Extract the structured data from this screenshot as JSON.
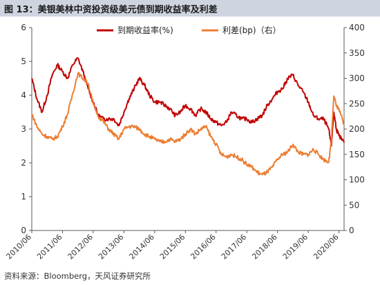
{
  "header": {
    "title": "图 13：美银美林中资投资级美元债到期收益率及利差"
  },
  "footer": {
    "source": "资料来源：Bloomberg，天风证券研究所"
  },
  "chart_data": {
    "type": "line",
    "legend_position": "top",
    "grid": false,
    "x_ticks": [
      "2010/06",
      "2011/06",
      "2012/06",
      "2013/06",
      "2014/06",
      "2015/06",
      "2016/06",
      "2017/06",
      "2018/06",
      "2019/06",
      "2020/06"
    ],
    "xlim": [
      "2010/06",
      "2020/08"
    ],
    "y_left": {
      "ticks": [
        0,
        1,
        2,
        3,
        4,
        5,
        6
      ],
      "ylim": [
        0,
        6
      ]
    },
    "y_right": {
      "ticks": [
        0,
        50,
        100,
        150,
        200,
        250,
        300,
        350,
        400
      ],
      "ylim": [
        0,
        400
      ]
    },
    "series": [
      {
        "name": "到期收益率(%)",
        "axis": "left",
        "color": "#c00000",
        "points": [
          [
            "2010/06",
            4.5
          ],
          [
            "2010/08",
            3.9
          ],
          [
            "2010/10",
            3.5
          ],
          [
            "2010/12",
            4.0
          ],
          [
            "2011/02",
            4.6
          ],
          [
            "2011/04",
            4.9
          ],
          [
            "2011/06",
            4.7
          ],
          [
            "2011/08",
            4.5
          ],
          [
            "2011/10",
            4.9
          ],
          [
            "2011/12",
            5.1
          ],
          [
            "2012/02",
            4.7
          ],
          [
            "2012/04",
            4.2
          ],
          [
            "2012/06",
            3.8
          ],
          [
            "2012/08",
            3.4
          ],
          [
            "2012/10",
            3.3
          ],
          [
            "2012/12",
            3.3
          ],
          [
            "2013/02",
            3.3
          ],
          [
            "2013/04",
            3.1
          ],
          [
            "2013/06",
            3.5
          ],
          [
            "2013/08",
            3.9
          ],
          [
            "2013/10",
            4.2
          ],
          [
            "2013/12",
            4.5
          ],
          [
            "2014/02",
            4.3
          ],
          [
            "2014/04",
            4.0
          ],
          [
            "2014/06",
            3.8
          ],
          [
            "2014/08",
            3.8
          ],
          [
            "2014/10",
            3.7
          ],
          [
            "2014/12",
            3.6
          ],
          [
            "2015/02",
            3.4
          ],
          [
            "2015/04",
            3.5
          ],
          [
            "2015/06",
            3.7
          ],
          [
            "2015/08",
            3.6
          ],
          [
            "2015/10",
            3.4
          ],
          [
            "2015/12",
            3.6
          ],
          [
            "2016/02",
            3.5
          ],
          [
            "2016/04",
            3.3
          ],
          [
            "2016/06",
            3.2
          ],
          [
            "2016/08",
            3.1
          ],
          [
            "2016/10",
            3.2
          ],
          [
            "2016/12",
            3.5
          ],
          [
            "2017/02",
            3.4
          ],
          [
            "2017/04",
            3.3
          ],
          [
            "2017/06",
            3.3
          ],
          [
            "2017/08",
            3.2
          ],
          [
            "2017/10",
            3.3
          ],
          [
            "2017/12",
            3.4
          ],
          [
            "2018/02",
            3.7
          ],
          [
            "2018/04",
            3.9
          ],
          [
            "2018/06",
            4.1
          ],
          [
            "2018/08",
            4.2
          ],
          [
            "2018/10",
            4.5
          ],
          [
            "2018/12",
            4.6
          ],
          [
            "2019/02",
            4.3
          ],
          [
            "2019/04",
            4.1
          ],
          [
            "2019/06",
            3.8
          ],
          [
            "2019/08",
            3.4
          ],
          [
            "2019/10",
            3.3
          ],
          [
            "2019/12",
            3.3
          ],
          [
            "2020/02",
            3.0
          ],
          [
            "2020/03",
            2.5
          ],
          [
            "2020/04",
            3.5
          ],
          [
            "2020/05",
            3.0
          ],
          [
            "2020/06",
            2.8
          ],
          [
            "2020/08",
            2.6
          ]
        ]
      },
      {
        "name": "利差(bp)（右）",
        "axis": "right",
        "color": "#ed7d31",
        "points": [
          [
            "2010/06",
            230
          ],
          [
            "2010/08",
            205
          ],
          [
            "2010/10",
            190
          ],
          [
            "2010/12",
            185
          ],
          [
            "2011/02",
            180
          ],
          [
            "2011/04",
            185
          ],
          [
            "2011/06",
            205
          ],
          [
            "2011/08",
            230
          ],
          [
            "2011/10",
            270
          ],
          [
            "2011/12",
            310
          ],
          [
            "2012/02",
            300
          ],
          [
            "2012/04",
            290
          ],
          [
            "2012/06",
            250
          ],
          [
            "2012/08",
            225
          ],
          [
            "2012/10",
            215
          ],
          [
            "2012/12",
            200
          ],
          [
            "2013/02",
            190
          ],
          [
            "2013/04",
            180
          ],
          [
            "2013/06",
            200
          ],
          [
            "2013/08",
            205
          ],
          [
            "2013/10",
            205
          ],
          [
            "2013/12",
            200
          ],
          [
            "2014/02",
            190
          ],
          [
            "2014/04",
            185
          ],
          [
            "2014/06",
            180
          ],
          [
            "2014/08",
            175
          ],
          [
            "2014/10",
            175
          ],
          [
            "2014/12",
            180
          ],
          [
            "2015/02",
            175
          ],
          [
            "2015/04",
            180
          ],
          [
            "2015/06",
            190
          ],
          [
            "2015/08",
            200
          ],
          [
            "2015/10",
            190
          ],
          [
            "2015/12",
            200
          ],
          [
            "2016/02",
            205
          ],
          [
            "2016/04",
            185
          ],
          [
            "2016/06",
            170
          ],
          [
            "2016/08",
            150
          ],
          [
            "2016/10",
            145
          ],
          [
            "2016/12",
            150
          ],
          [
            "2017/02",
            145
          ],
          [
            "2017/04",
            140
          ],
          [
            "2017/06",
            130
          ],
          [
            "2017/08",
            125
          ],
          [
            "2017/10",
            115
          ],
          [
            "2017/12",
            110
          ],
          [
            "2018/02",
            115
          ],
          [
            "2018/04",
            125
          ],
          [
            "2018/06",
            140
          ],
          [
            "2018/08",
            150
          ],
          [
            "2018/10",
            155
          ],
          [
            "2018/12",
            170
          ],
          [
            "2019/02",
            155
          ],
          [
            "2019/04",
            150
          ],
          [
            "2019/06",
            150
          ],
          [
            "2019/08",
            160
          ],
          [
            "2019/10",
            150
          ],
          [
            "2019/12",
            140
          ],
          [
            "2020/02",
            135
          ],
          [
            "2020/03",
            175
          ],
          [
            "2020/04",
            265
          ],
          [
            "2020/05",
            245
          ],
          [
            "2020/06",
            240
          ],
          [
            "2020/08",
            210
          ]
        ]
      }
    ]
  }
}
